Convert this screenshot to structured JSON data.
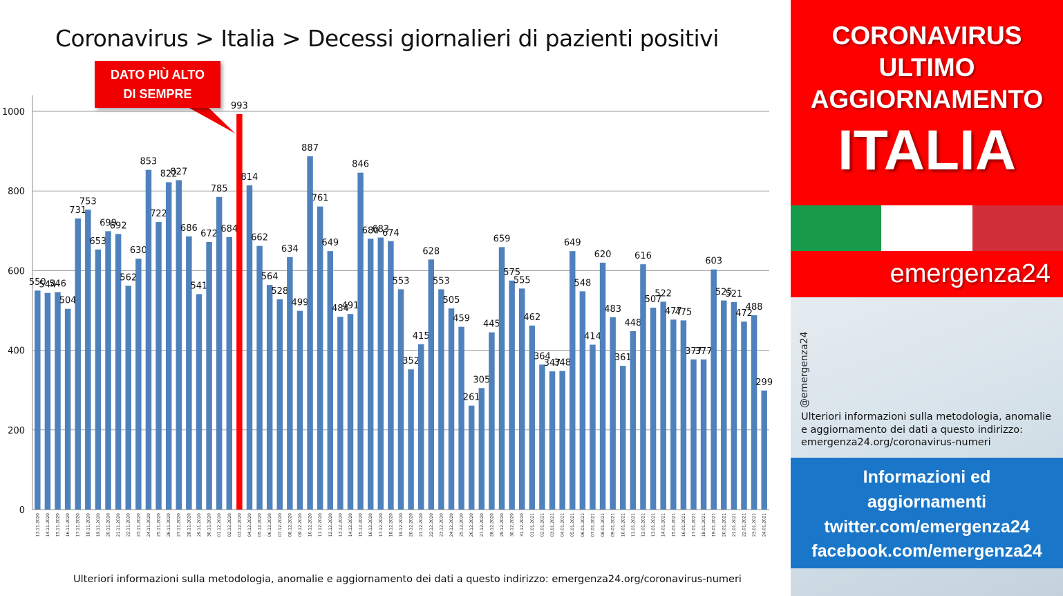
{
  "page": {
    "title": "Coronavirus > Italia > Decessi giornalieri di pazienti positivi",
    "callout": {
      "line1": "DATO PIÙ ALTO",
      "line2": "DI SEMPRE"
    },
    "footnote": "Ulteriori informazioni sulla metodologia, anomalie e aggiornamento dei dati a questo indirizzo: emergenza24.org/coronavirus-numeri"
  },
  "sidebar": {
    "header": [
      "CORONAVIRUS",
      "ULTIMO",
      "AGGIORNAMENTO"
    ],
    "country": "ITALIA",
    "flag_colors": [
      "#179a4a",
      "#ffffff",
      "#d12f3a"
    ],
    "brand": "emergenza24",
    "handle": "@emergenza24",
    "info_text": "Ulteriori informazioni sulla metodologia, anomalie e aggiornamento dei dati a questo indirizzo: emergenza24.org/coronavirus-numeri",
    "links": [
      "Informazioni ed",
      "aggiornamenti",
      "twitter.com/emergenza24",
      "facebook.com/emergenza24"
    ]
  },
  "colors": {
    "bar": "#4f81bd",
    "highlight": "#ff0000",
    "accent_red": "#ff0000",
    "accent_blue": "#1a76c8"
  },
  "chart_data": {
    "type": "bar",
    "title": "Coronavirus > Italia > Decessi giornalieri di pazienti positivi",
    "xlabel": "",
    "ylabel": "",
    "ylim": [
      0,
      1000
    ],
    "yticks": [
      0,
      200,
      400,
      600,
      800,
      1000
    ],
    "grid": true,
    "highlight_category": "03.12.2020",
    "categories": [
      "13.11.2020",
      "14.11.2020",
      "15.11.2020",
      "16.11.2020",
      "17.11.2020",
      "18.11.2020",
      "19.11.2020",
      "20.11.2020",
      "21.11.2020",
      "22.11.2020",
      "23.11.2020",
      "24.11.2020",
      "25.11.2020",
      "26.11.2020",
      "27.11.2020",
      "28.11.2020",
      "29.11.2020",
      "30.11.2020",
      "01.12.2020",
      "02.12.2020",
      "03.12.2020",
      "04.12.2020",
      "05.12.2020",
      "06.12.2020",
      "07.12.2020",
      "08.12.2020",
      "09.12.2020",
      "10.12.2020",
      "11.12.2020",
      "12.12.2020",
      "13.12.2020",
      "14.12.2020",
      "15.12.2020",
      "16.12.2020",
      "17.12.2020",
      "18.12.2020",
      "19.12.2020",
      "20.12.2020",
      "21.12.2020",
      "22.12.2020",
      "23.12.2020",
      "24.12.2020",
      "25.12.2020",
      "26.12.2020",
      "27.12.2020",
      "28.12.2020",
      "29.12.2020",
      "30.12.2020",
      "31.12.2020",
      "01.01.2021",
      "02.01.2021",
      "03.01.2021",
      "04.01.2021",
      "05.01.2021",
      "06.01.2021",
      "07.01.2021",
      "08.01.2021",
      "09.01.2021",
      "10.01.2021",
      "11.01.2021",
      "12.01.2021",
      "13.01.2021",
      "14.01.2021",
      "15.01.2021",
      "16.01.2021",
      "17.01.2021",
      "18.01.2021",
      "19.01.2021",
      "20.01.2021",
      "21.01.2021",
      "22.01.2021",
      "23.01.2021",
      "24.01.2021"
    ],
    "values": [
      550,
      544,
      546,
      504,
      731,
      753,
      653,
      699,
      692,
      562,
      630,
      853,
      722,
      822,
      827,
      686,
      541,
      672,
      785,
      684,
      993,
      814,
      662,
      564,
      528,
      634,
      499,
      887,
      761,
      649,
      484,
      491,
      846,
      680,
      683,
      674,
      553,
      352,
      415,
      628,
      553,
      505,
      459,
      261,
      305,
      445,
      659,
      575,
      555,
      462,
      364,
      347,
      348,
      649,
      548,
      414,
      620,
      483,
      361,
      448,
      616,
      507,
      522,
      477,
      475,
      377,
      377,
      603,
      525,
      521,
      472,
      488,
      299
    ]
  }
}
